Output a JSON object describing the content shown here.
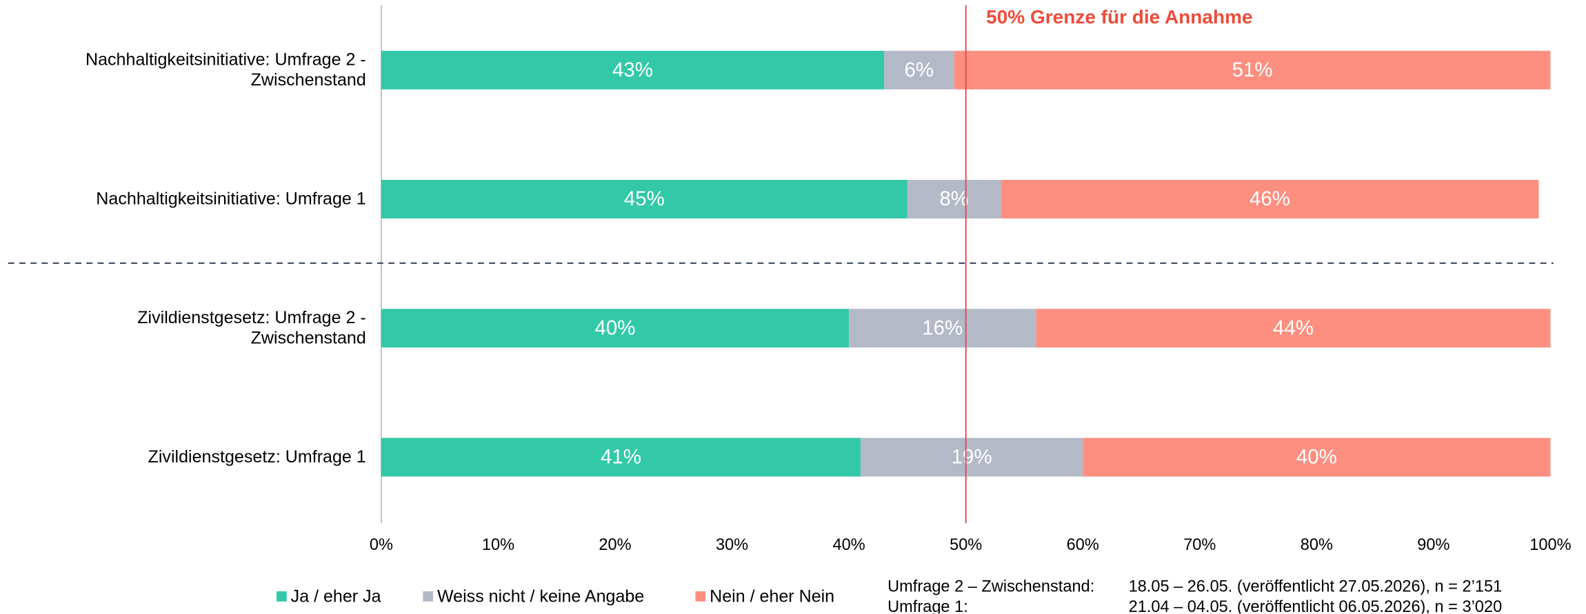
{
  "chart_data": {
    "type": "stacked-bar-horizontal",
    "categories": [
      "Nachhaltigkeitsinitiative: Umfrage 2 -\nZwischenstand",
      "Nachhaltigkeitsinitiative: Umfrage 1",
      "Zivildienstgesetz: Umfrage 2 -\nZwischenstand",
      "Zivildienstgesetz: Umfrage 1"
    ],
    "series": [
      {
        "name": "Ja / eher Ja",
        "color": "#33c9a8",
        "values": [
          43,
          45,
          40,
          41
        ],
        "value_labels": [
          "43%",
          "45%",
          "40%",
          "41%"
        ]
      },
      {
        "name": "Weiss nicht / keine Angabe",
        "color": "#b3b9c6",
        "values": [
          6,
          8,
          16,
          19
        ],
        "value_labels": [
          "6%",
          "8%",
          "16%",
          "19%"
        ]
      },
      {
        "name": "Nein / eher Nein",
        "color": "#fd8f80",
        "values": [
          51,
          46,
          44,
          40
        ],
        "value_labels": [
          "51%",
          "46%",
          "44%",
          "40%"
        ]
      }
    ],
    "xlim": [
      0,
      100
    ],
    "xticks": [
      {
        "value": 0,
        "label": "0%"
      },
      {
        "value": 10,
        "label": "10%"
      },
      {
        "value": 20,
        "label": "20%"
      },
      {
        "value": 30,
        "label": "30%"
      },
      {
        "value": 40,
        "label": "40%"
      },
      {
        "value": 50,
        "label": "50%"
      },
      {
        "value": 60,
        "label": "60%"
      },
      {
        "value": 70,
        "label": "70%"
      },
      {
        "value": 80,
        "label": "80%"
      },
      {
        "value": 90,
        "label": "90%"
      },
      {
        "value": 100,
        "label": "100%"
      }
    ],
    "threshold": {
      "value": 50,
      "label": "50% Grenze für die Annahme",
      "color": "#ef4b3a"
    },
    "legend": "bottom-left",
    "notes": [
      {
        "label": "Umfrage 2 – Zwischenstand:",
        "text": "18.05 – 26.05. (veröffentlicht 27.05.2026), n = 2’151"
      },
      {
        "label": "Umfrage 1:",
        "text": "21.04 – 04.05. (veröffentlicht 06.05.2026), n = 3’020"
      }
    ]
  }
}
